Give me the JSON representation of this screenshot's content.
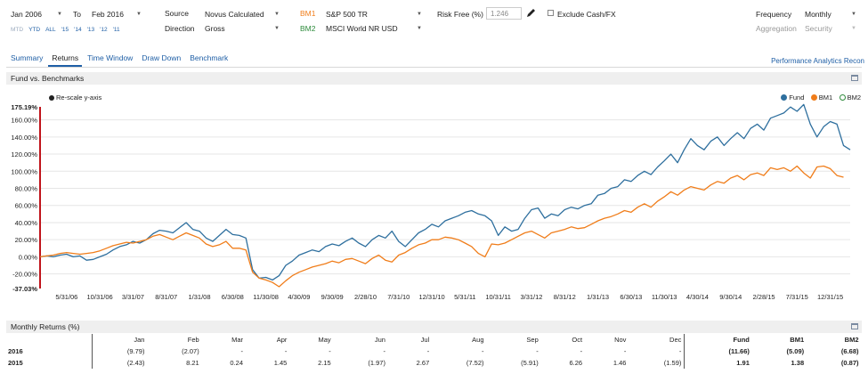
{
  "header": {
    "from_period": "Jan 2006",
    "to_label": "To",
    "to_period": "Feb 2016",
    "quick_ranges": [
      "MTD",
      "YTD",
      "ALL",
      "'15",
      "'14",
      "'13",
      "'12",
      "'11"
    ],
    "source_label": "Source",
    "source_value": "Novus Calculated",
    "direction_label": "Direction",
    "direction_value": "Gross",
    "bm1_label": "BM1",
    "bm1_value": "S&P 500 TR",
    "bm2_label": "BM2",
    "bm2_value": "MSCI World NR USD",
    "risk_free_label": "Risk Free (%)",
    "risk_free_value": "1.246",
    "exclude_cash_label": "Exclude Cash/FX",
    "frequency_label": "Frequency",
    "frequency_value": "Monthly",
    "aggregation_label": "Aggregation",
    "aggregation_value": "Security"
  },
  "colors": {
    "fund": "#2e6f9e",
    "bm1": "#f07d1a",
    "bm2": "#2e8b3c",
    "link": "#1f5fa6"
  },
  "tabs": [
    "Summary",
    "Returns",
    "Time Window",
    "Draw Down",
    "Benchmark"
  ],
  "active_tab": "Returns",
  "app_link": "Performance Analytics Recon",
  "chart_panel": {
    "title": "Fund vs. Benchmarks",
    "rescale_label": "Re-scale y-axis"
  },
  "chart_data": {
    "type": "line",
    "title": "",
    "xlabel": "",
    "ylabel": "",
    "ylim": [
      -37.03,
      175.19
    ],
    "y_ticks": [
      "175.19%",
      "160.00%",
      "140.00%",
      "120.00%",
      "100.00%",
      "80.00%",
      "60.00%",
      "40.00%",
      "20.00%",
      "0.00%",
      "-20.00%",
      "-37.03%"
    ],
    "y_tick_values": [
      175.19,
      160,
      140,
      120,
      100,
      80,
      60,
      40,
      20,
      0,
      -20,
      -37.03
    ],
    "x_ticks": [
      "5/31/06",
      "10/31/06",
      "3/31/07",
      "8/31/07",
      "1/31/08",
      "6/30/08",
      "11/30/08",
      "4/30/09",
      "9/30/09",
      "2/28/10",
      "7/31/10",
      "12/31/10",
      "5/31/11",
      "10/31/11",
      "3/31/12",
      "8/31/12",
      "1/31/13",
      "6/30/13",
      "11/30/13",
      "4/30/14",
      "9/30/14",
      "2/28/15",
      "7/31/15",
      "12/31/15"
    ],
    "x_tick_index": [
      4,
      9,
      14,
      19,
      24,
      29,
      34,
      39,
      44,
      49,
      54,
      59,
      64,
      69,
      74,
      79,
      84,
      89,
      94,
      99,
      104,
      109,
      114,
      119
    ],
    "legend_position": "top-right",
    "series": [
      {
        "name": "Fund",
        "values": [
          0,
          1,
          0,
          2,
          3,
          0,
          1,
          -4,
          -3,
          0,
          3,
          8,
          12,
          14,
          18,
          16,
          20,
          27,
          31,
          30,
          28,
          34,
          40,
          32,
          30,
          22,
          18,
          25,
          32,
          26,
          25,
          22,
          -15,
          -25,
          -24,
          -27,
          -22,
          -10,
          -5,
          2,
          5,
          8,
          6,
          12,
          15,
          13,
          18,
          22,
          16,
          12,
          20,
          25,
          22,
          30,
          18,
          12,
          20,
          28,
          32,
          38,
          35,
          42,
          45,
          48,
          52,
          54,
          50,
          48,
          42,
          25,
          35,
          30,
          32,
          45,
          55,
          57,
          45,
          50,
          48,
          55,
          58,
          56,
          60,
          62,
          72,
          74,
          80,
          82,
          90,
          88,
          95,
          100,
          96,
          105,
          112,
          120,
          110,
          125,
          138,
          130,
          125,
          135,
          140,
          130,
          138,
          145,
          138,
          150,
          155,
          148,
          162,
          165,
          168,
          175,
          170,
          178,
          155,
          140,
          152,
          158,
          155,
          130,
          125
        ],
        "color": "#2e6f9e"
      },
      {
        "name": "BM1",
        "values": [
          0,
          1,
          2,
          4,
          5,
          4,
          3,
          4,
          5,
          7,
          10,
          13,
          15,
          17,
          16,
          18,
          20,
          24,
          26,
          23,
          20,
          24,
          28,
          25,
          22,
          15,
          12,
          14,
          18,
          10,
          10,
          8,
          -18,
          -25,
          -27,
          -30,
          -35,
          -28,
          -22,
          -18,
          -15,
          -12,
          -10,
          -8,
          -5,
          -7,
          -3,
          -2,
          -5,
          -8,
          -2,
          2,
          -4,
          -6,
          2,
          5,
          10,
          14,
          16,
          20,
          20,
          23,
          22,
          20,
          16,
          12,
          4,
          0,
          15,
          14,
          16,
          20,
          24,
          28,
          30,
          26,
          22,
          28,
          30,
          32,
          35,
          33,
          34,
          38,
          42,
          45,
          47,
          50,
          54,
          52,
          58,
          62,
          58,
          65,
          70,
          76,
          72,
          78,
          82,
          80,
          78,
          84,
          88,
          86,
          92,
          95,
          90,
          96,
          98,
          95,
          104,
          102,
          104,
          100,
          106,
          98,
          92,
          105,
          106,
          103,
          95,
          93
        ],
        "color": "#f07d1a"
      },
      {
        "name": "BM2",
        "values": [],
        "color": "#2e8b3c"
      }
    ]
  },
  "monthly_panel": {
    "title": "Monthly Returns (%)",
    "columns": [
      "Jan",
      "Feb",
      "Mar",
      "Apr",
      "May",
      "Jun",
      "Jul",
      "Aug",
      "Sep",
      "Oct",
      "Nov",
      "Dec",
      "Fund",
      "BM1",
      "BM2"
    ],
    "rows": [
      {
        "year": "2016",
        "cells": [
          "(9.79)",
          "(2.07)",
          "-",
          "-",
          "-",
          "-",
          "-",
          "-",
          "-",
          "-",
          "-",
          "-",
          "(11.66)",
          "(5.09)",
          "(6.68)"
        ]
      },
      {
        "year": "2015",
        "cells": [
          "(2.43)",
          "8.21",
          "0.24",
          "1.45",
          "2.15",
          "(1.97)",
          "2.67",
          "(7.52)",
          "(5.91)",
          "6.26",
          "1.46",
          "(1.59)",
          "1.91",
          "1.38",
          "(0.87)"
        ]
      }
    ]
  }
}
